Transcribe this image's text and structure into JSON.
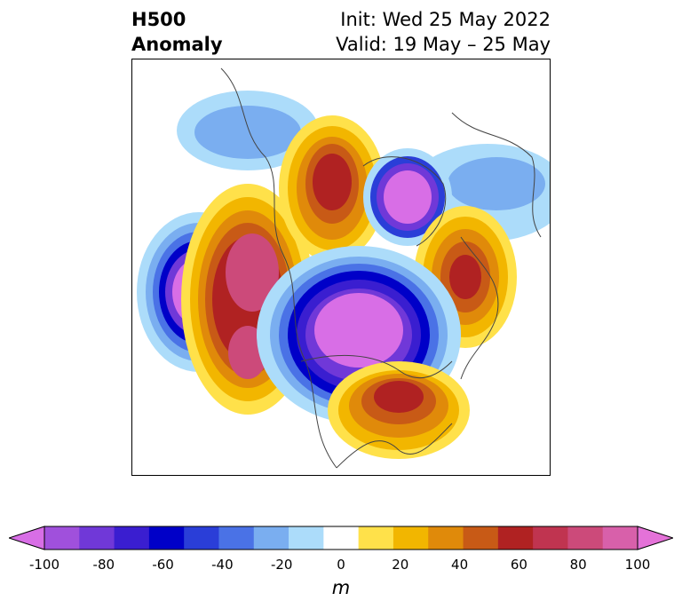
{
  "title": {
    "left_line1": "H500",
    "left_line2": "Anomaly",
    "right_line1": "Init: Wed 25 May 2022",
    "right_line2": "Valid: 19 May – 25 May"
  },
  "colorbar": {
    "units": "m",
    "ticks": [
      "-100",
      "-80",
      "-60",
      "-40",
      "-20",
      "0",
      "20",
      "40",
      "60",
      "80",
      "100"
    ],
    "colors": [
      "#d86ee6",
      "#a050dc",
      "#7038d8",
      "#3a1ed0",
      "#0000c8",
      "#2a3ed8",
      "#4a72e6",
      "#7aaef0",
      "#acdcfa",
      "#ffffff",
      "#ffe14a",
      "#f2b600",
      "#e08a0a",
      "#c85a16",
      "#b02222",
      "#c03450",
      "#cc4a7a",
      "#d860aa",
      "#e472d8"
    ]
  }
}
